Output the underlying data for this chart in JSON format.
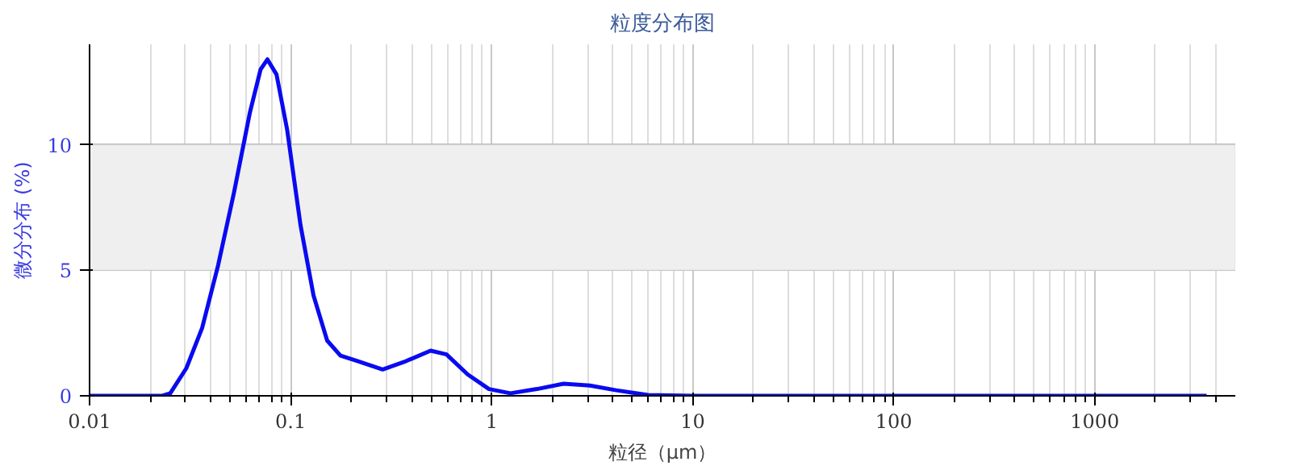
{
  "chart_data": {
    "type": "line",
    "title": "粒度分布图",
    "xlabel": "粒径（μm）",
    "ylabel": "微分分布 (%)",
    "log": "x",
    "xlim": [
      0.01,
      5000
    ],
    "xticks": [
      {
        "value": 0.01,
        "label": "0.01"
      },
      {
        "value": 0.1,
        "label": "0.1"
      },
      1,
      10,
      100,
      1000
    ],
    "ylim": [
      0,
      14
    ],
    "yticks": [
      0,
      5,
      10
    ],
    "grid": true,
    "marker": "none",
    "line_style": "solid",
    "bands": [
      {
        "axis": "y",
        "from": 5,
        "to": 10,
        "color": "#efefef"
      }
    ],
    "series": [
      {
        "color": "#0a0af0",
        "x": [
          0.01,
          0.023,
          0.0252,
          0.0303,
          0.0363,
          0.0436,
          0.0523,
          0.0628,
          0.0709,
          0.0767,
          0.0851,
          0.0961,
          0.112,
          0.13,
          0.152,
          0.177,
          0.212,
          0.287,
          0.367,
          0.497,
          0.596,
          0.76,
          0.97,
          1.24,
          1.68,
          2.28,
          3.08,
          4.17,
          6.0,
          10,
          100,
          1000,
          3600
        ],
        "values": [
          0,
          0,
          0.1,
          1.1,
          2.7,
          5.2,
          8.1,
          11.3,
          13.0,
          13.4,
          12.8,
          10.6,
          6.8,
          4.0,
          2.2,
          1.6,
          1.4,
          1.05,
          1.35,
          1.8,
          1.65,
          0.85,
          0.27,
          0.1,
          0.27,
          0.48,
          0.41,
          0.22,
          0.03,
          0,
          0,
          0,
          0
        ]
      }
    ]
  }
}
